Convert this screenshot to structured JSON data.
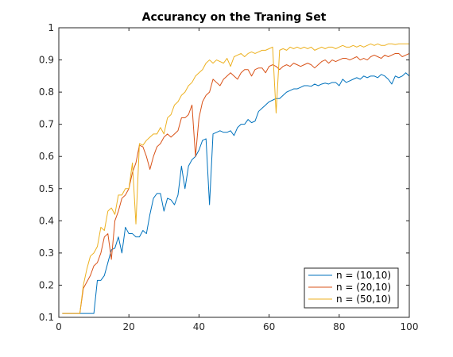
{
  "chart_data": {
    "type": "line",
    "title": "Accurancy on the Traning Set",
    "xlabel": "",
    "ylabel": "",
    "xlim": [
      0,
      100
    ],
    "ylim": [
      0.1,
      1
    ],
    "xticks": [
      0,
      20,
      40,
      60,
      80,
      100
    ],
    "yticks": [
      0.1,
      0.2,
      0.3,
      0.4,
      0.5,
      0.6,
      0.7,
      0.8,
      0.9,
      1
    ],
    "x_tick_labels": [
      "0",
      "20",
      "40",
      "60",
      "80",
      "100"
    ],
    "y_tick_labels": [
      "0.1",
      "0.2",
      "0.3",
      "0.4",
      "0.5",
      "0.6",
      "0.7",
      "0.8",
      "0.9",
      "1"
    ],
    "grid": false,
    "legend_position": "bottom-right",
    "series": [
      {
        "name": "n = (10,10)",
        "color": "#0072bd",
        "x": [
          1,
          2,
          3,
          4,
          5,
          6,
          7,
          8,
          9,
          10,
          11,
          12,
          13,
          14,
          15,
          16,
          17,
          18,
          19,
          20,
          21,
          22,
          23,
          24,
          25,
          26,
          27,
          28,
          29,
          30,
          31,
          32,
          33,
          34,
          35,
          36,
          37,
          38,
          39,
          40,
          41,
          42,
          43,
          44,
          45,
          46,
          47,
          48,
          49,
          50,
          51,
          52,
          53,
          54,
          55,
          56,
          57,
          58,
          59,
          60,
          61,
          62,
          63,
          64,
          65,
          66,
          67,
          68,
          69,
          70,
          71,
          72,
          73,
          74,
          75,
          76,
          77,
          78,
          79,
          80,
          81,
          82,
          83,
          84,
          85,
          86,
          87,
          88,
          89,
          90,
          91,
          92,
          93,
          94,
          95,
          96,
          97,
          98,
          99,
          100
        ],
        "values": [
          0.112,
          0.112,
          0.112,
          0.112,
          0.112,
          0.112,
          0.112,
          0.112,
          0.112,
          0.112,
          0.215,
          0.215,
          0.23,
          0.27,
          0.31,
          0.315,
          0.35,
          0.3,
          0.38,
          0.36,
          0.36,
          0.35,
          0.35,
          0.37,
          0.36,
          0.42,
          0.47,
          0.485,
          0.485,
          0.43,
          0.47,
          0.465,
          0.45,
          0.48,
          0.57,
          0.5,
          0.57,
          0.59,
          0.6,
          0.62,
          0.65,
          0.655,
          0.45,
          0.67,
          0.675,
          0.68,
          0.675,
          0.675,
          0.68,
          0.665,
          0.69,
          0.7,
          0.7,
          0.715,
          0.705,
          0.71,
          0.74,
          0.75,
          0.76,
          0.77,
          0.775,
          0.78,
          0.78,
          0.79,
          0.8,
          0.805,
          0.81,
          0.81,
          0.815,
          0.82,
          0.82,
          0.818,
          0.825,
          0.82,
          0.825,
          0.828,
          0.825,
          0.83,
          0.83,
          0.82,
          0.84,
          0.83,
          0.835,
          0.84,
          0.845,
          0.84,
          0.85,
          0.845,
          0.85,
          0.85,
          0.845,
          0.855,
          0.85,
          0.84,
          0.825,
          0.85,
          0.845,
          0.85,
          0.86,
          0.85
        ]
      },
      {
        "name": "n = (20,10)",
        "color": "#d95319",
        "x": [
          1,
          2,
          3,
          4,
          5,
          6,
          7,
          8,
          9,
          10,
          11,
          12,
          13,
          14,
          15,
          16,
          17,
          18,
          19,
          20,
          21,
          22,
          23,
          24,
          25,
          26,
          27,
          28,
          29,
          30,
          31,
          32,
          33,
          34,
          35,
          36,
          37,
          38,
          39,
          40,
          41,
          42,
          43,
          44,
          45,
          46,
          47,
          48,
          49,
          50,
          51,
          52,
          53,
          54,
          55,
          56,
          57,
          58,
          59,
          60,
          61,
          62,
          63,
          64,
          65,
          66,
          67,
          68,
          69,
          70,
          71,
          72,
          73,
          74,
          75,
          76,
          77,
          78,
          79,
          80,
          81,
          82,
          83,
          84,
          85,
          86,
          87,
          88,
          89,
          90,
          91,
          92,
          93,
          94,
          95,
          96,
          97,
          98,
          99,
          100
        ],
        "values": [
          0.112,
          0.112,
          0.112,
          0.112,
          0.112,
          0.112,
          0.19,
          0.21,
          0.23,
          0.26,
          0.27,
          0.3,
          0.35,
          0.36,
          0.28,
          0.4,
          0.43,
          0.47,
          0.48,
          0.5,
          0.55,
          0.58,
          0.635,
          0.63,
          0.6,
          0.56,
          0.6,
          0.63,
          0.64,
          0.66,
          0.67,
          0.66,
          0.67,
          0.68,
          0.72,
          0.72,
          0.73,
          0.76,
          0.6,
          0.72,
          0.77,
          0.79,
          0.8,
          0.84,
          0.83,
          0.82,
          0.84,
          0.85,
          0.86,
          0.85,
          0.84,
          0.86,
          0.87,
          0.87,
          0.85,
          0.87,
          0.875,
          0.875,
          0.86,
          0.88,
          0.885,
          0.88,
          0.87,
          0.88,
          0.885,
          0.88,
          0.89,
          0.885,
          0.88,
          0.885,
          0.89,
          0.885,
          0.875,
          0.885,
          0.895,
          0.9,
          0.89,
          0.9,
          0.895,
          0.9,
          0.905,
          0.905,
          0.9,
          0.905,
          0.91,
          0.9,
          0.905,
          0.9,
          0.91,
          0.915,
          0.91,
          0.905,
          0.915,
          0.91,
          0.915,
          0.92,
          0.92,
          0.91,
          0.915,
          0.92
        ]
      },
      {
        "name": "n = (50,10)",
        "color": "#edb120",
        "x": [
          1,
          2,
          3,
          4,
          5,
          6,
          7,
          8,
          9,
          10,
          11,
          12,
          13,
          14,
          15,
          16,
          17,
          18,
          19,
          20,
          21,
          22,
          23,
          24,
          25,
          26,
          27,
          28,
          29,
          30,
          31,
          32,
          33,
          34,
          35,
          36,
          37,
          38,
          39,
          40,
          41,
          42,
          43,
          44,
          45,
          46,
          47,
          48,
          49,
          50,
          51,
          52,
          53,
          54,
          55,
          56,
          57,
          58,
          59,
          60,
          61,
          62,
          63,
          64,
          65,
          66,
          67,
          68,
          69,
          70,
          71,
          72,
          73,
          74,
          75,
          76,
          77,
          78,
          79,
          80,
          81,
          82,
          83,
          84,
          85,
          86,
          87,
          88,
          89,
          90,
          91,
          92,
          93,
          94,
          95,
          96,
          97,
          98,
          99,
          100
        ],
        "values": [
          0.112,
          0.112,
          0.112,
          0.112,
          0.112,
          0.112,
          0.2,
          0.25,
          0.29,
          0.3,
          0.32,
          0.38,
          0.37,
          0.43,
          0.44,
          0.42,
          0.48,
          0.48,
          0.5,
          0.5,
          0.58,
          0.39,
          0.64,
          0.635,
          0.65,
          0.66,
          0.67,
          0.67,
          0.69,
          0.67,
          0.72,
          0.73,
          0.76,
          0.77,
          0.79,
          0.8,
          0.82,
          0.83,
          0.85,
          0.86,
          0.87,
          0.89,
          0.9,
          0.89,
          0.9,
          0.895,
          0.89,
          0.905,
          0.88,
          0.91,
          0.915,
          0.92,
          0.91,
          0.92,
          0.925,
          0.92,
          0.925,
          0.93,
          0.93,
          0.935,
          0.94,
          0.735,
          0.93,
          0.935,
          0.93,
          0.94,
          0.935,
          0.94,
          0.935,
          0.94,
          0.935,
          0.94,
          0.93,
          0.935,
          0.94,
          0.935,
          0.94,
          0.94,
          0.935,
          0.94,
          0.945,
          0.94,
          0.94,
          0.945,
          0.94,
          0.945,
          0.94,
          0.945,
          0.95,
          0.945,
          0.95,
          0.945,
          0.945,
          0.95,
          0.95,
          0.948,
          0.95,
          0.95,
          0.95,
          0.95
        ]
      }
    ]
  }
}
